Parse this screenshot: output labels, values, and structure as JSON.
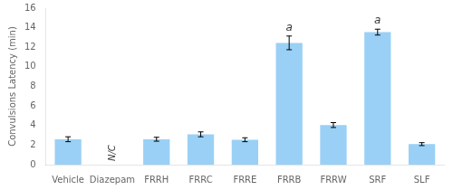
{
  "chart_data": {
    "type": "bar",
    "categories": [
      "Vehicle",
      "Diazepam",
      "FRRH",
      "FRRC",
      "FRRE",
      "FRRB",
      "FRRW",
      "SRF",
      "SLF"
    ],
    "values": [
      2.6,
      null,
      2.6,
      3.1,
      2.55,
      12.45,
      4.05,
      13.55,
      2.1
    ],
    "errors": [
      0.25,
      null,
      0.2,
      0.25,
      0.2,
      0.7,
      0.25,
      0.3,
      0.15
    ],
    "ylabel": "Convulsions Latency (min)",
    "ylim": [
      0,
      16
    ],
    "yticks": [
      0,
      2,
      4,
      6,
      8,
      10,
      12,
      14,
      16
    ],
    "grid": false,
    "annotations": [
      {
        "text": "N/C",
        "x": "Diazepam"
      },
      {
        "text": "a",
        "x": "FRRB"
      },
      {
        "text": "a",
        "x": "SRF"
      }
    ]
  }
}
